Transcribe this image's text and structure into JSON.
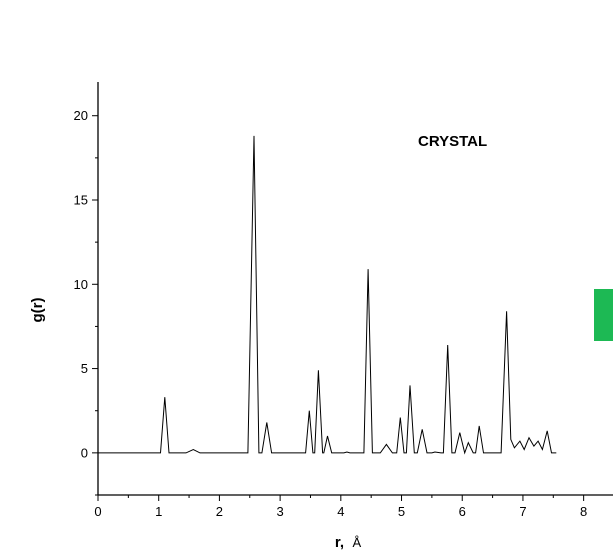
{
  "chart_data": {
    "type": "line",
    "xlabel_bold": "r,",
    "xlabel_unit": "Å",
    "ylabel": "g(r)",
    "annotation": "CRYSTAL",
    "xlim": [
      0,
      8.5
    ],
    "ylim": [
      -2.5,
      22
    ],
    "x_ticks": [
      0,
      1,
      2,
      3,
      4,
      5,
      6,
      7,
      8
    ],
    "y_ticks": [
      0,
      5,
      10,
      15,
      20
    ],
    "grid": false,
    "series": [
      {
        "color": "#000000",
        "points": [
          [
            0,
            0
          ],
          [
            1.03,
            0
          ],
          [
            1.1,
            3.3
          ],
          [
            1.17,
            0
          ],
          [
            1.45,
            0
          ],
          [
            1.57,
            0.2
          ],
          [
            1.68,
            0
          ],
          [
            2.47,
            0
          ],
          [
            2.57,
            18.8
          ],
          [
            2.65,
            0
          ],
          [
            2.7,
            0
          ],
          [
            2.78,
            1.8
          ],
          [
            2.86,
            0
          ],
          [
            3.42,
            0
          ],
          [
            3.48,
            2.5
          ],
          [
            3.54,
            0
          ],
          [
            3.57,
            0
          ],
          [
            3.63,
            4.9
          ],
          [
            3.7,
            0
          ],
          [
            3.72,
            0
          ],
          [
            3.78,
            1.0
          ],
          [
            3.85,
            0
          ],
          [
            4.05,
            0
          ],
          [
            4.1,
            0.05
          ],
          [
            4.15,
            0
          ],
          [
            4.38,
            0
          ],
          [
            4.45,
            10.9
          ],
          [
            4.52,
            0
          ],
          [
            4.65,
            0
          ],
          [
            4.75,
            0.5
          ],
          [
            4.85,
            0
          ],
          [
            4.92,
            0
          ],
          [
            4.98,
            2.1
          ],
          [
            5.04,
            0
          ],
          [
            5.08,
            0
          ],
          [
            5.14,
            4.0
          ],
          [
            5.21,
            0
          ],
          [
            5.26,
            0
          ],
          [
            5.34,
            1.4
          ],
          [
            5.42,
            0
          ],
          [
            5.5,
            0
          ],
          [
            5.55,
            0.05
          ],
          [
            5.65,
            0
          ],
          [
            5.69,
            0
          ],
          [
            5.76,
            6.4
          ],
          [
            5.83,
            0
          ],
          [
            5.88,
            0
          ],
          [
            5.96,
            1.2
          ],
          [
            6.04,
            0
          ],
          [
            6.1,
            0.6
          ],
          [
            6.18,
            0
          ],
          [
            6.22,
            0
          ],
          [
            6.28,
            1.6
          ],
          [
            6.35,
            0
          ],
          [
            6.64,
            0
          ],
          [
            6.73,
            8.4
          ],
          [
            6.8,
            0.8
          ],
          [
            6.86,
            0.3
          ],
          [
            6.95,
            0.7
          ],
          [
            7.02,
            0.2
          ],
          [
            7.1,
            0.9
          ],
          [
            7.18,
            0.4
          ],
          [
            7.25,
            0.7
          ],
          [
            7.32,
            0.2
          ],
          [
            7.4,
            1.3
          ],
          [
            7.47,
            0
          ],
          [
            7.55,
            0
          ]
        ]
      }
    ]
  }
}
